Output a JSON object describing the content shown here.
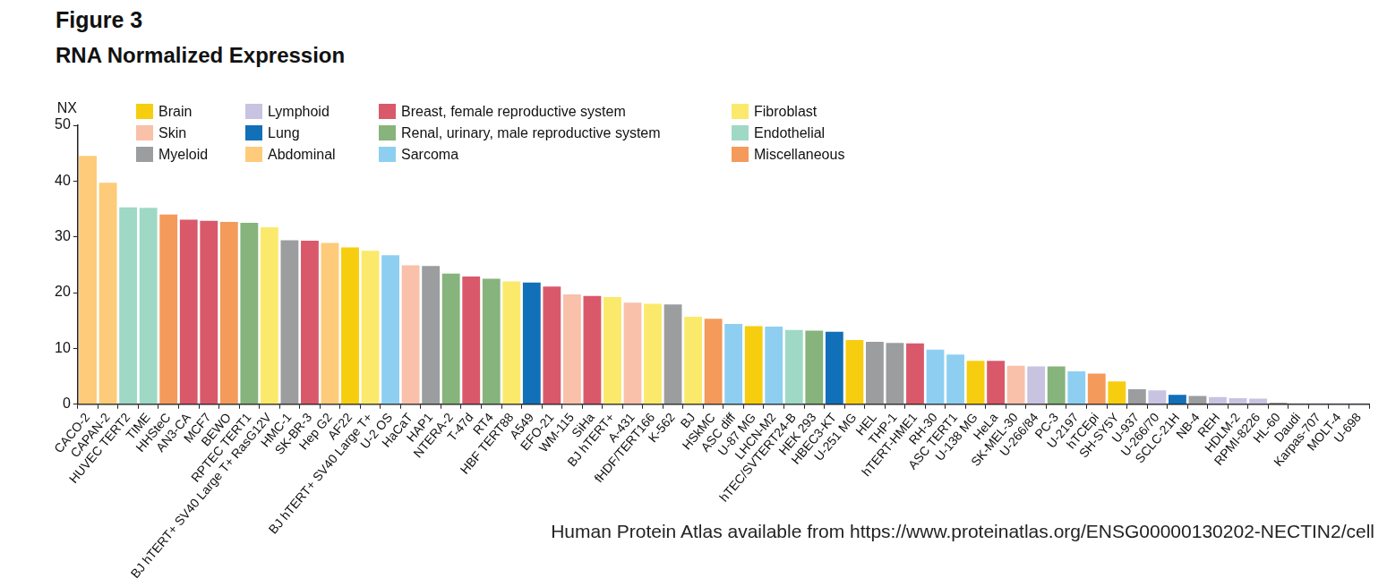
{
  "chart_data": {
    "type": "bar",
    "title": "Figure 3",
    "subtitle": "RNA Normalized Expression",
    "y_label": "NX",
    "annotation": "Human Protein Atlas available from https://www.proteinatlas.org/ENSG00000130202-NECTIN2/cell",
    "categories": [
      "CACO-2",
      "CAPAN-2",
      "HUVEC TERT2",
      "TIME",
      "HHSteC",
      "AN3-CA",
      "MCF7",
      "BEWO",
      "RPTEC TERT1",
      "BJ hTERT+ SV40 Large T+ RasG12V",
      "HMC-1",
      "SK-BR-3",
      "Hep G2",
      "AF22",
      "BJ hTERT+ SV40 Large T+",
      "U-2 OS",
      "HaCaT",
      "HAP1",
      "NTERA-2",
      "T-47d",
      "RT4",
      "HBF TERT88",
      "A549",
      "EFO-21",
      "WM-115",
      "SiHa",
      "BJ hTERT+",
      "A-431",
      "fHDF/TERT166",
      "K-562",
      "BJ",
      "HSkMC",
      "ASC diff",
      "U-87 MG",
      "LHCN-M2",
      "hTEC/SVTERT24-B",
      "HEK 293",
      "HBEC3-KT",
      "U-251 MG",
      "HEL",
      "THP-1",
      "hTERT-HME1",
      "RH-30",
      "ASC TERT1",
      "U-138 MG",
      "HeLa",
      "SK-MEL-30",
      "U-266/84",
      "PC-3",
      "U-2197",
      "hTCEpi",
      "SH-SY5Y",
      "U-937",
      "U-266/70",
      "SCLC-21H",
      "NB-4",
      "REH",
      "HDLM-2",
      "RPMI-8226",
      "HL-60",
      "Daudi",
      "Karpas-707",
      "MOLT-4",
      "U-698"
    ],
    "series": [
      {
        "name": "Brain",
        "color": "#f7cd0f",
        "values": [
          null,
          null,
          null,
          null,
          null,
          null,
          null,
          null,
          null,
          null,
          null,
          null,
          null,
          28.1,
          null,
          null,
          null,
          null,
          null,
          null,
          null,
          null,
          null,
          null,
          null,
          null,
          null,
          null,
          null,
          null,
          null,
          null,
          null,
          14.0,
          null,
          null,
          null,
          null,
          11.5,
          null,
          null,
          null,
          null,
          null,
          7.8,
          null,
          null,
          null,
          null,
          null,
          null,
          4.1,
          null,
          null,
          null,
          null,
          null,
          null,
          null,
          null,
          null,
          null,
          null,
          null
        ]
      },
      {
        "name": "Skin",
        "color": "#f9c0aa",
        "values": [
          null,
          null,
          null,
          null,
          null,
          null,
          null,
          null,
          null,
          null,
          null,
          null,
          null,
          null,
          null,
          null,
          24.9,
          null,
          null,
          null,
          null,
          null,
          null,
          null,
          19.7,
          null,
          null,
          18.2,
          null,
          null,
          null,
          null,
          null,
          null,
          null,
          null,
          null,
          null,
          null,
          null,
          null,
          null,
          null,
          null,
          null,
          null,
          6.9,
          null,
          null,
          null,
          null,
          null,
          null,
          null,
          null,
          null,
          null,
          null,
          null,
          null,
          null,
          null,
          null,
          null
        ]
      },
      {
        "name": "Myeloid",
        "color": "#9b9d9f",
        "values": [
          null,
          null,
          null,
          null,
          null,
          null,
          null,
          null,
          null,
          null,
          29.4,
          null,
          null,
          null,
          null,
          null,
          null,
          24.8,
          null,
          null,
          null,
          null,
          null,
          null,
          null,
          null,
          null,
          null,
          null,
          17.9,
          null,
          null,
          null,
          null,
          null,
          null,
          null,
          null,
          null,
          11.2,
          11.0,
          null,
          null,
          null,
          null,
          null,
          null,
          null,
          null,
          null,
          null,
          null,
          2.7,
          null,
          null,
          1.5,
          null,
          null,
          null,
          0.3,
          null,
          null,
          null,
          null
        ]
      },
      {
        "name": "Lymphoid",
        "color": "#c7c3e0",
        "values": [
          null,
          null,
          null,
          null,
          null,
          null,
          null,
          null,
          null,
          null,
          null,
          null,
          null,
          null,
          null,
          null,
          null,
          null,
          null,
          null,
          null,
          null,
          null,
          null,
          null,
          null,
          null,
          null,
          null,
          null,
          null,
          null,
          null,
          null,
          null,
          null,
          null,
          null,
          null,
          null,
          null,
          null,
          null,
          null,
          null,
          null,
          null,
          6.8,
          null,
          null,
          null,
          null,
          null,
          2.5,
          null,
          null,
          1.3,
          1.1,
          1.0,
          null,
          0.2,
          0.2,
          0.2,
          0.2
        ]
      },
      {
        "name": "Lung",
        "color": "#1170b8",
        "values": [
          null,
          null,
          null,
          null,
          null,
          null,
          null,
          null,
          null,
          null,
          null,
          null,
          null,
          null,
          null,
          null,
          null,
          null,
          null,
          null,
          null,
          null,
          21.8,
          null,
          null,
          null,
          null,
          null,
          null,
          null,
          null,
          null,
          null,
          null,
          null,
          null,
          null,
          13.0,
          null,
          null,
          null,
          null,
          null,
          null,
          null,
          null,
          null,
          null,
          null,
          null,
          null,
          null,
          null,
          null,
          1.7,
          null,
          null,
          null,
          null,
          null,
          null,
          null,
          null,
          null
        ]
      },
      {
        "name": "Abdominal",
        "color": "#fdcb79",
        "values": [
          44.5,
          39.7,
          null,
          null,
          null,
          null,
          null,
          null,
          null,
          null,
          null,
          null,
          28.9,
          null,
          null,
          null,
          null,
          null,
          null,
          null,
          null,
          null,
          null,
          null,
          null,
          null,
          null,
          null,
          null,
          null,
          null,
          null,
          null,
          null,
          null,
          null,
          null,
          null,
          null,
          null,
          null,
          null,
          null,
          null,
          null,
          null,
          null,
          null,
          null,
          null,
          null,
          null,
          null,
          null,
          null,
          null,
          null,
          null,
          null,
          null,
          null,
          null,
          null,
          null
        ]
      },
      {
        "name": "Breast, female reproductive system",
        "color": "#d9596b",
        "values": [
          null,
          null,
          null,
          null,
          null,
          33.1,
          32.9,
          null,
          null,
          null,
          null,
          29.3,
          null,
          null,
          null,
          null,
          null,
          null,
          null,
          22.9,
          null,
          null,
          null,
          21.1,
          null,
          19.4,
          null,
          null,
          null,
          null,
          null,
          null,
          null,
          null,
          null,
          null,
          null,
          null,
          null,
          null,
          null,
          10.9,
          null,
          null,
          null,
          7.8,
          null,
          null,
          null,
          null,
          null,
          null,
          null,
          null,
          null,
          null,
          null,
          null,
          null,
          null,
          null,
          null,
          null,
          null
        ]
      },
      {
        "name": "Renal, urinary, male reproductive system",
        "color": "#86b47c",
        "values": [
          null,
          null,
          null,
          null,
          null,
          null,
          null,
          null,
          32.5,
          null,
          null,
          null,
          null,
          null,
          null,
          null,
          null,
          null,
          23.4,
          null,
          22.5,
          null,
          null,
          null,
          null,
          null,
          null,
          null,
          null,
          null,
          null,
          null,
          null,
          null,
          null,
          null,
          13.2,
          null,
          null,
          null,
          null,
          null,
          null,
          null,
          null,
          null,
          null,
          null,
          6.8,
          null,
          null,
          null,
          null,
          null,
          null,
          null,
          null,
          null,
          null,
          null,
          null,
          null,
          null,
          null
        ]
      },
      {
        "name": "Sarcoma",
        "color": "#8ecff1",
        "values": [
          null,
          null,
          null,
          null,
          null,
          null,
          null,
          null,
          null,
          null,
          null,
          null,
          null,
          null,
          null,
          26.7,
          null,
          null,
          null,
          null,
          null,
          null,
          null,
          null,
          null,
          null,
          null,
          null,
          null,
          null,
          null,
          null,
          14.4,
          null,
          13.9,
          null,
          null,
          null,
          null,
          null,
          null,
          null,
          9.8,
          8.9,
          null,
          null,
          null,
          null,
          null,
          5.9,
          null,
          null,
          null,
          null,
          null,
          null,
          null,
          null,
          null,
          null,
          null,
          null,
          null,
          null
        ]
      },
      {
        "name": "Fibroblast",
        "color": "#fbe96b",
        "values": [
          null,
          null,
          null,
          null,
          null,
          null,
          null,
          null,
          null,
          31.7,
          null,
          null,
          null,
          null,
          27.5,
          null,
          null,
          null,
          null,
          null,
          null,
          22.0,
          null,
          null,
          null,
          null,
          19.2,
          null,
          18.0,
          null,
          15.7,
          null,
          null,
          null,
          null,
          null,
          null,
          null,
          null,
          null,
          null,
          null,
          null,
          null,
          null,
          null,
          null,
          null,
          null,
          null,
          null,
          null,
          null,
          null,
          null,
          null,
          null,
          null,
          null,
          null,
          null,
          null,
          null,
          null
        ]
      },
      {
        "name": "Endothelial",
        "color": "#9fd9c6",
        "values": [
          null,
          null,
          35.3,
          35.2,
          null,
          null,
          null,
          null,
          null,
          null,
          null,
          null,
          null,
          null,
          null,
          null,
          null,
          null,
          null,
          null,
          null,
          null,
          null,
          null,
          null,
          null,
          null,
          null,
          null,
          null,
          null,
          null,
          null,
          null,
          null,
          13.3,
          null,
          null,
          null,
          null,
          null,
          null,
          null,
          null,
          null,
          null,
          null,
          null,
          null,
          null,
          null,
          null,
          null,
          null,
          null,
          null,
          null,
          null,
          null,
          null,
          null,
          null,
          null,
          null
        ]
      },
      {
        "name": "Miscellaneous",
        "color": "#f49a5b",
        "values": [
          null,
          null,
          null,
          null,
          34.0,
          null,
          null,
          32.7,
          null,
          null,
          null,
          null,
          null,
          null,
          null,
          null,
          null,
          null,
          null,
          null,
          null,
          null,
          null,
          null,
          null,
          null,
          null,
          null,
          null,
          null,
          null,
          15.3,
          null,
          null,
          null,
          null,
          null,
          null,
          null,
          null,
          null,
          null,
          null,
          null,
          null,
          null,
          null,
          null,
          null,
          null,
          5.5,
          null,
          null,
          null,
          null,
          null,
          null,
          null,
          null,
          null,
          null,
          null,
          null,
          null
        ]
      }
    ],
    "stacked": true,
    "ylim": [
      0,
      50
    ],
    "yticks": [
      0,
      10,
      20,
      30,
      40,
      50
    ],
    "grid": false,
    "legend": "top"
  }
}
